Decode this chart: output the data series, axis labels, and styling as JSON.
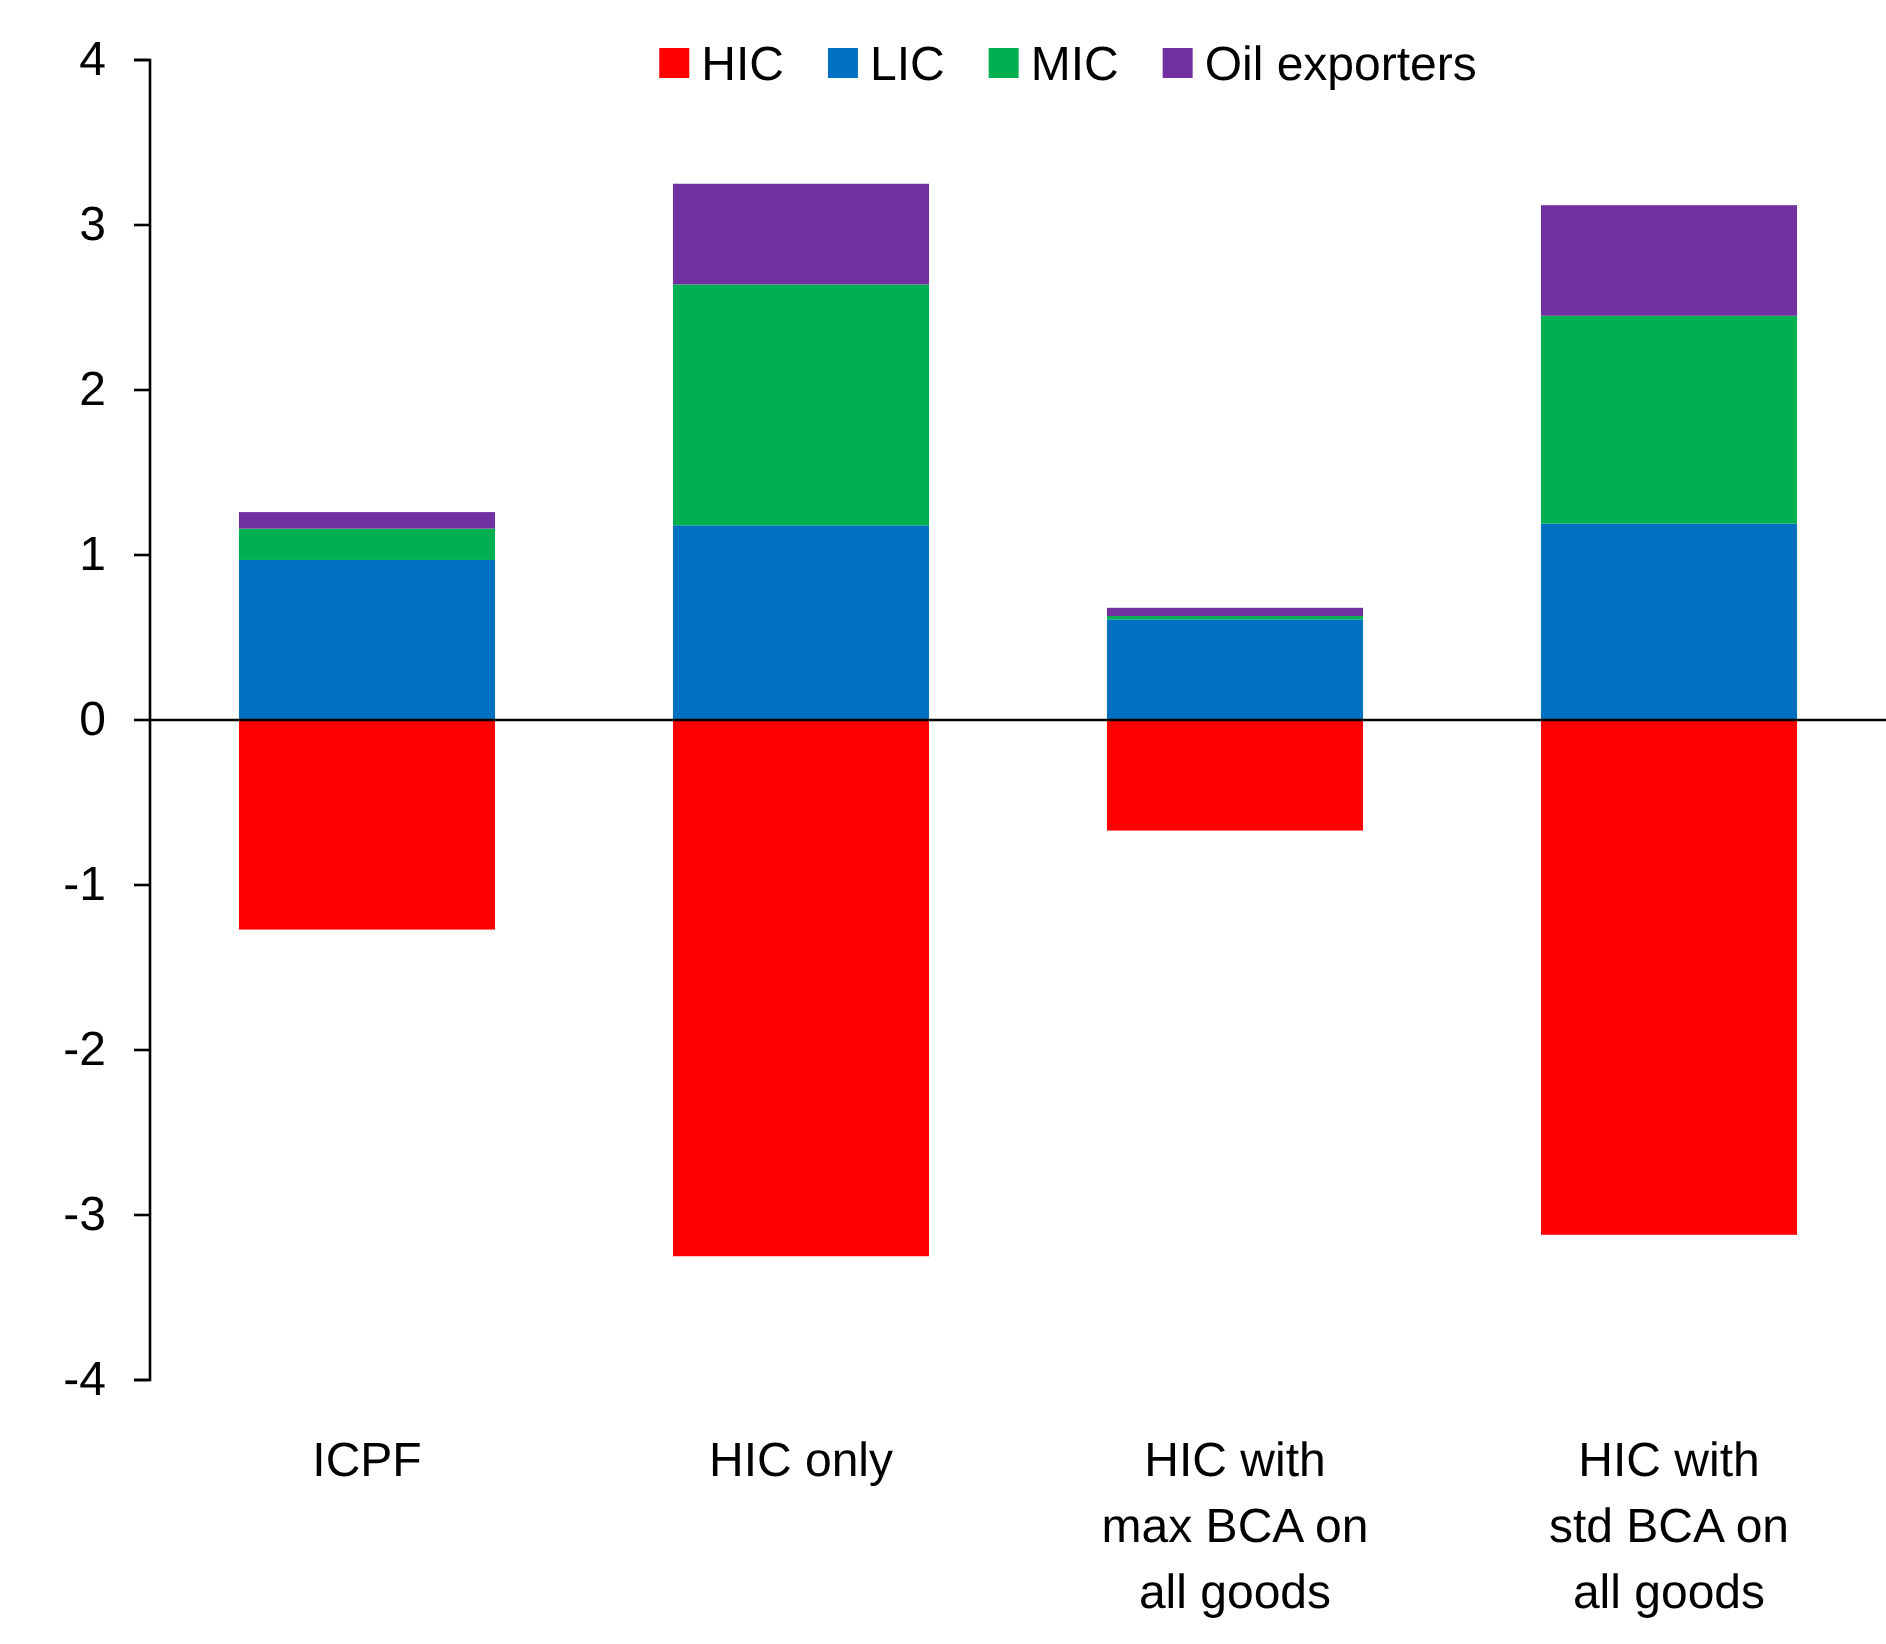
{
  "chart_data": {
    "type": "bar",
    "stacked": true,
    "categories": [
      "ICPF",
      "HIC only",
      "HIC with max BCA on all goods",
      "HIC with std BCA on all goods"
    ],
    "series": [
      {
        "name": "HIC",
        "color": "#ff0000",
        "values": [
          -1.27,
          -3.25,
          -0.67,
          -3.12
        ]
      },
      {
        "name": "LIC",
        "color": "#0070c0",
        "values": [
          0.97,
          1.18,
          0.61,
          1.19
        ]
      },
      {
        "name": "MIC",
        "color": "#00b050",
        "values": [
          0.19,
          1.46,
          0.02,
          1.26
        ]
      },
      {
        "name": "Oil exporters",
        "color": "#7030a0",
        "values": [
          0.1,
          0.61,
          0.05,
          0.67
        ]
      }
    ],
    "ylim": [
      -4,
      4
    ],
    "yticks": [
      -4,
      -3,
      -2,
      -1,
      0,
      1,
      2,
      3,
      4
    ],
    "ref_lines": [
      {
        "axis": "y",
        "value": 0
      }
    ],
    "legend": "top"
  }
}
